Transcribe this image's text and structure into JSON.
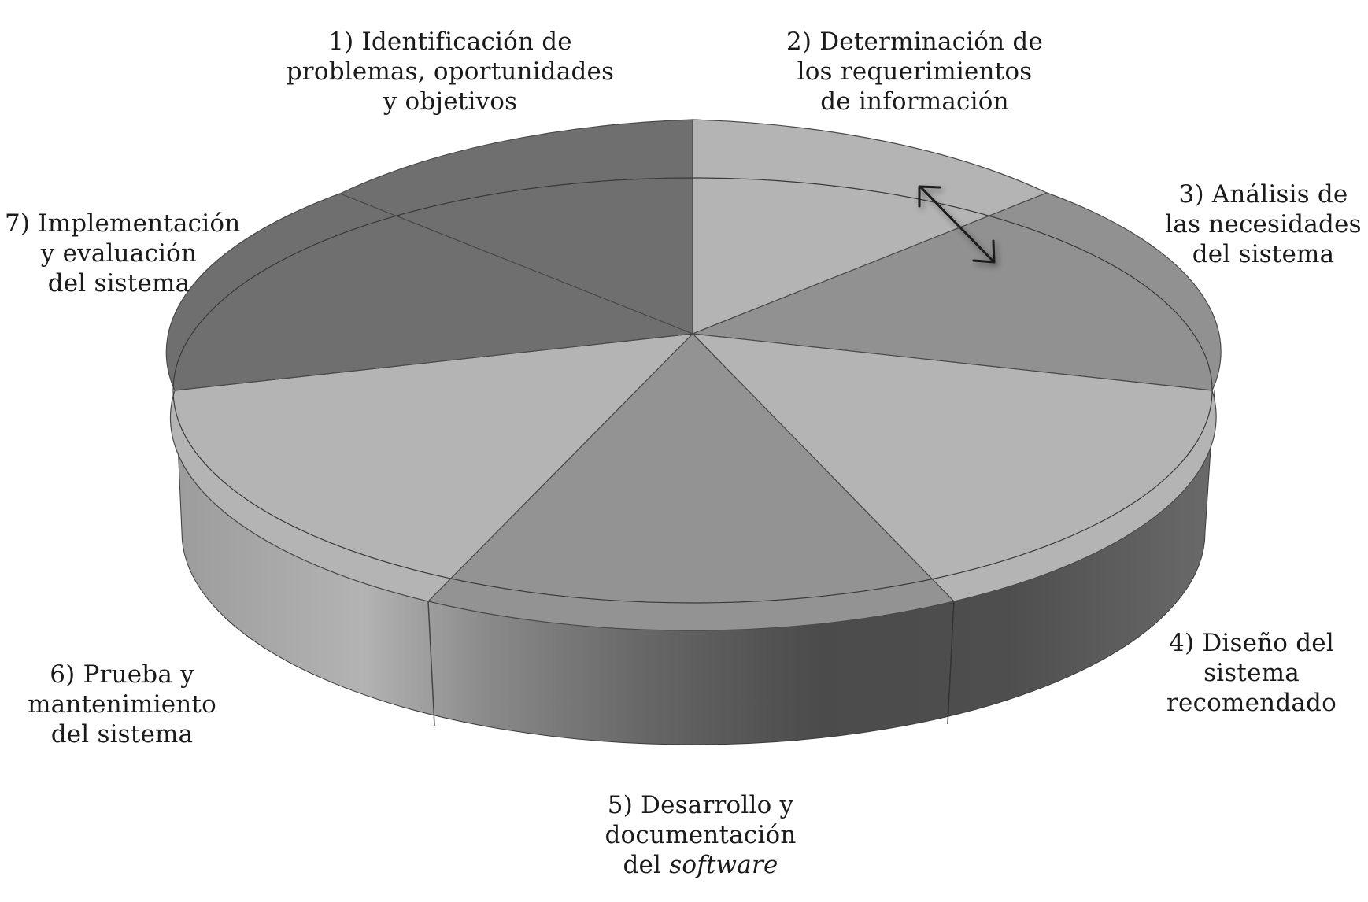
{
  "diagram": {
    "type": "cycle-wheel",
    "phases": [
      {
        "lines": [
          "1) Identificación de",
          "problemas, oportunidades",
          "y objetivos"
        ],
        "tone": "#6f6f6f"
      },
      {
        "lines": [
          "2) Determinación de",
          "los requerimientos",
          "de información"
        ],
        "tone": "#b4b4b4"
      },
      {
        "lines": [
          "3) Análisis de",
          "las necesidades",
          "del sistema"
        ],
        "tone": "#919191"
      },
      {
        "lines": [
          "4) Diseño del",
          "sistema",
          "recomendado"
        ],
        "tone": "#b4b4b4"
      },
      {
        "lines": [
          "5) Desarrollo y",
          "documentación",
          "del "
        ],
        "emphasis": "software",
        "tone": "#939393"
      },
      {
        "lines": [
          "6) Prueba y",
          "mantenimiento",
          "del sistema"
        ],
        "tone": "#b4b4b4"
      },
      {
        "lines": [
          "7) Implementación",
          "y evaluación",
          "del sistema"
        ],
        "tone": "#6f6f6f"
      }
    ],
    "connector": {
      "type": "double-headed-arrow",
      "between": [
        "2) Determinación de",
        "3) Análisis de"
      ]
    }
  }
}
